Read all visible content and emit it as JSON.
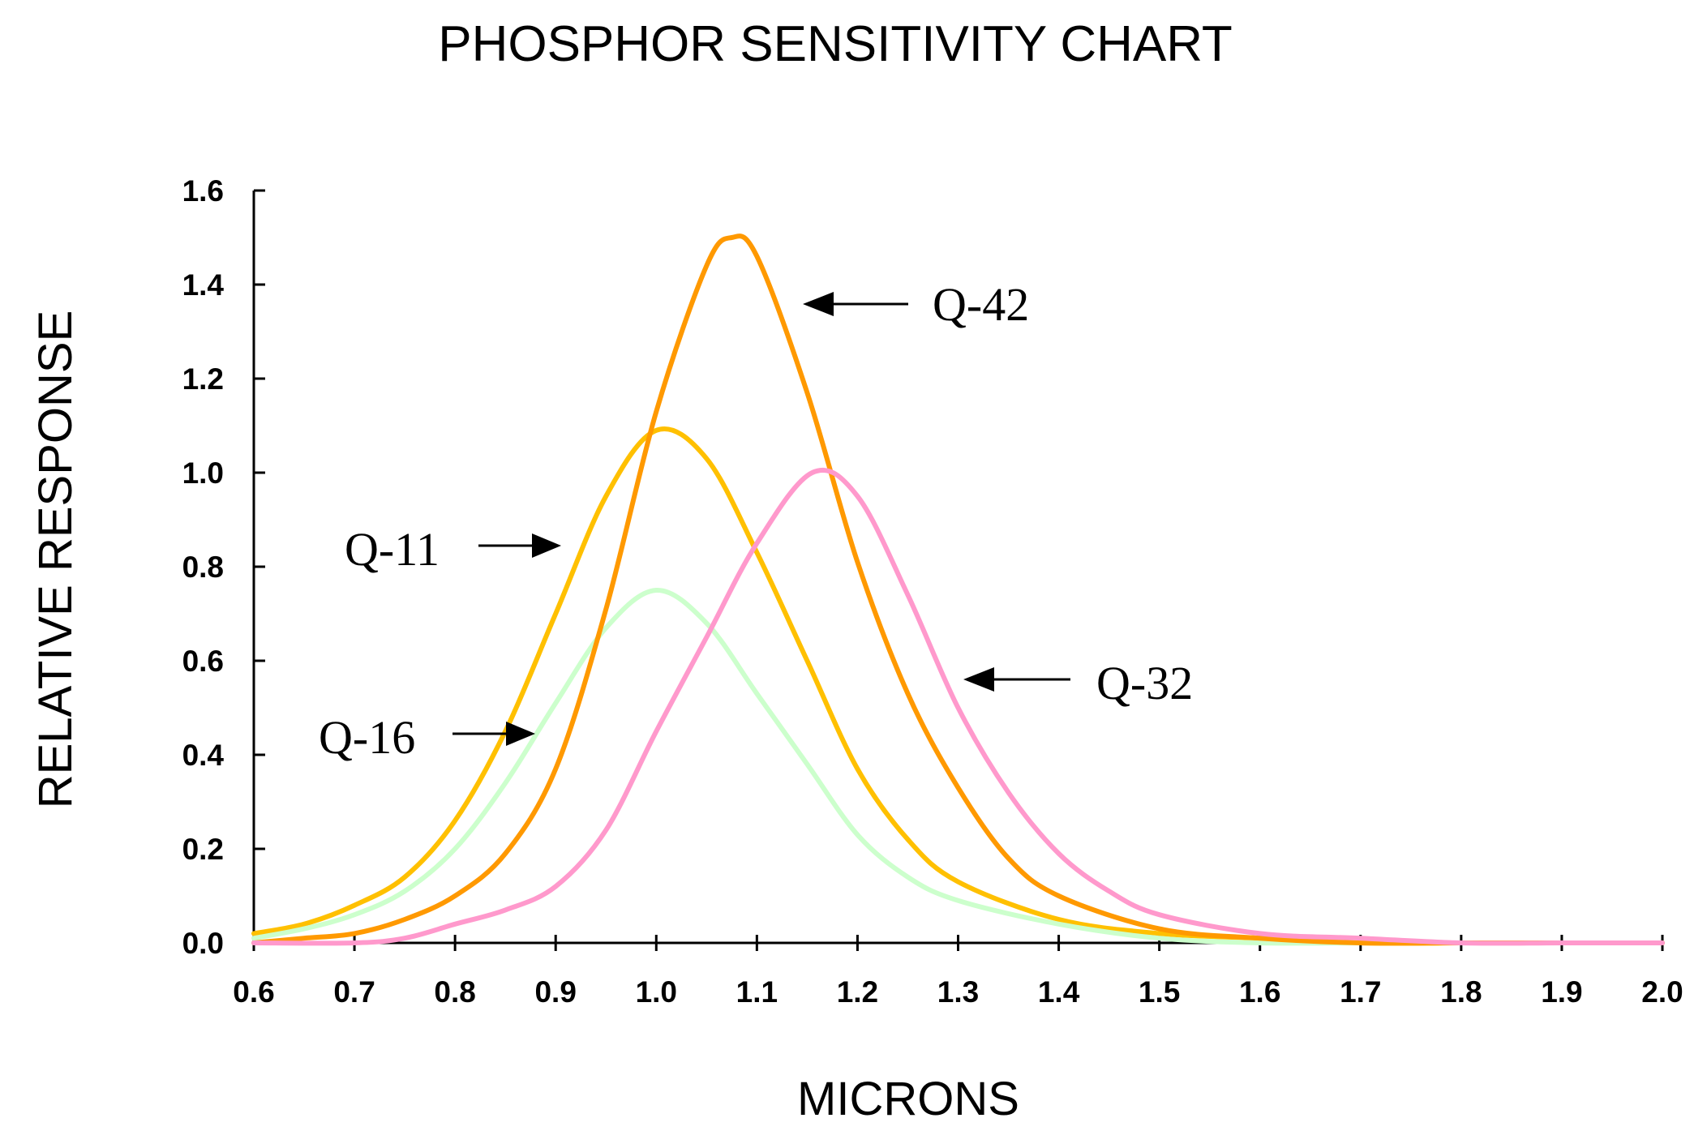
{
  "chart_data": {
    "type": "line",
    "title": "PHOSPHOR SENSITIVITY CHART",
    "xlabel": "MICRONS",
    "ylabel": "RELATIVE RESPONSE",
    "xlim": [
      0.6,
      2.0
    ],
    "ylim": [
      0.0,
      1.6
    ],
    "x_ticks": [
      "0.6",
      "0.7",
      "0.8",
      "0.9",
      "1.0",
      "1.1",
      "1.2",
      "1.3",
      "1.4",
      "1.5",
      "1.6",
      "1.7",
      "1.8",
      "1.9",
      "2.0"
    ],
    "y_ticks": [
      "0.0",
      "0.2",
      "0.4",
      "0.6",
      "0.8",
      "1.0",
      "1.2",
      "1.4",
      "1.6"
    ],
    "grid": false,
    "legend": "none",
    "series": [
      {
        "name": "Q-11",
        "color": "#ffc000",
        "x": [
          0.6,
          0.65,
          0.7,
          0.75,
          0.8,
          0.85,
          0.9,
          0.95,
          1.0,
          1.05,
          1.1,
          1.15,
          1.2,
          1.25,
          1.3,
          1.4,
          1.5,
          1.6,
          1.7,
          1.8,
          1.9,
          2.0
        ],
        "y": [
          0.02,
          0.04,
          0.08,
          0.14,
          0.26,
          0.45,
          0.7,
          0.95,
          1.09,
          1.03,
          0.83,
          0.6,
          0.37,
          0.22,
          0.13,
          0.05,
          0.02,
          0.01,
          0.0,
          0.0,
          0.0,
          0.0
        ]
      },
      {
        "name": "Q-16",
        "color": "#ccffcc",
        "x": [
          0.6,
          0.65,
          0.7,
          0.75,
          0.8,
          0.85,
          0.9,
          0.95,
          1.0,
          1.05,
          1.1,
          1.15,
          1.2,
          1.25,
          1.3,
          1.4,
          1.5,
          1.6,
          1.7,
          1.8,
          1.9,
          2.0
        ],
        "y": [
          0.01,
          0.03,
          0.06,
          0.11,
          0.2,
          0.34,
          0.51,
          0.67,
          0.75,
          0.68,
          0.53,
          0.38,
          0.23,
          0.14,
          0.09,
          0.04,
          0.01,
          0.0,
          0.0,
          0.0,
          0.0,
          0.0
        ]
      },
      {
        "name": "Q-42",
        "color": "#ff9900",
        "x": [
          0.6,
          0.65,
          0.7,
          0.75,
          0.8,
          0.85,
          0.9,
          0.95,
          1.0,
          1.05,
          1.075,
          1.1,
          1.15,
          1.2,
          1.25,
          1.3,
          1.35,
          1.4,
          1.5,
          1.6,
          1.7,
          1.8,
          1.9,
          2.0
        ],
        "y": [
          0.0,
          0.01,
          0.02,
          0.05,
          0.1,
          0.19,
          0.37,
          0.71,
          1.13,
          1.44,
          1.5,
          1.46,
          1.17,
          0.81,
          0.53,
          0.33,
          0.18,
          0.1,
          0.03,
          0.01,
          0.0,
          0.0,
          0.0,
          0.0
        ]
      },
      {
        "name": "Q-32",
        "color": "#ff99cc",
        "x": [
          0.6,
          0.7,
          0.75,
          0.8,
          0.85,
          0.9,
          0.95,
          1.0,
          1.05,
          1.1,
          1.155,
          1.2,
          1.25,
          1.3,
          1.35,
          1.4,
          1.45,
          1.5,
          1.6,
          1.7,
          1.8,
          1.9,
          2.0
        ],
        "y": [
          0.0,
          0.0,
          0.01,
          0.04,
          0.07,
          0.12,
          0.24,
          0.45,
          0.65,
          0.85,
          1.0,
          0.95,
          0.74,
          0.5,
          0.32,
          0.19,
          0.11,
          0.06,
          0.02,
          0.01,
          0.0,
          0.0,
          0.0
        ]
      }
    ],
    "annotations": [
      "Q-42",
      "Q-11",
      "Q-32",
      "Q-16"
    ]
  }
}
